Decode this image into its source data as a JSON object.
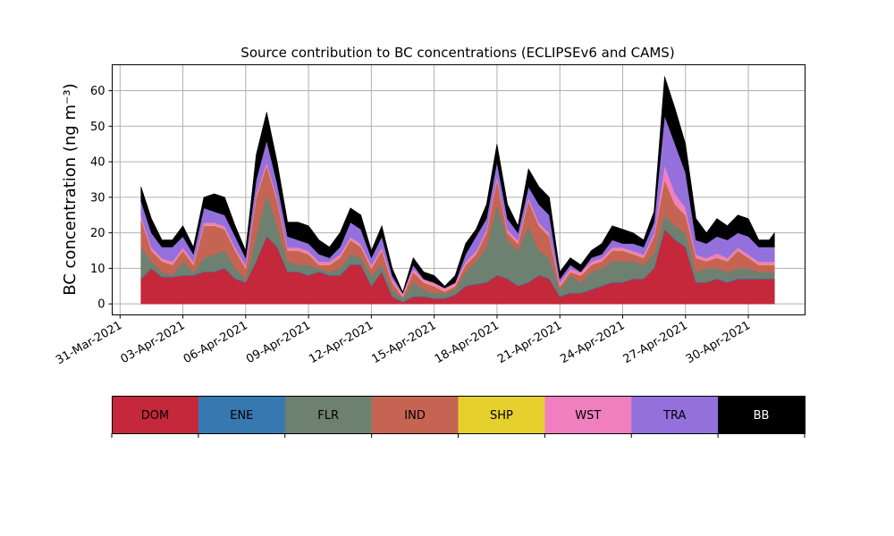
{
  "chart_data": {
    "type": "area",
    "stacked": true,
    "title": "Source contribution to BC concentrations (ECLIPSEv6 and CAMS)",
    "xlabel": "",
    "ylabel": "BC concentration (ng m⁻³)",
    "ylim": [
      -3.1,
      67.3
    ],
    "xlim": [
      "2021-03-30T15:00",
      "2021-05-02T17:00"
    ],
    "grid": true,
    "yticks": [
      "0",
      "10",
      "20",
      "30",
      "40",
      "50",
      "60"
    ],
    "xticks": [
      "31-Mar-2021",
      "03-Apr-2021",
      "06-Apr-2021",
      "09-Apr-2021",
      "12-Apr-2021",
      "15-Apr-2021",
      "18-Apr-2021",
      "21-Apr-2021",
      "24-Apr-2021",
      "27-Apr-2021",
      "30-Apr-2021"
    ],
    "legend_placement": "bottom colorbar",
    "x": [
      "2021-04-01T00",
      "2021-04-01T12",
      "2021-04-02T00",
      "2021-04-02T12",
      "2021-04-03T00",
      "2021-04-03T12",
      "2021-04-04T00",
      "2021-04-04T12",
      "2021-04-05T00",
      "2021-04-05T12",
      "2021-04-06T00",
      "2021-04-06T12",
      "2021-04-07T00",
      "2021-04-07T12",
      "2021-04-08T00",
      "2021-04-08T12",
      "2021-04-09T00",
      "2021-04-09T12",
      "2021-04-10T00",
      "2021-04-10T12",
      "2021-04-11T00",
      "2021-04-11T12",
      "2021-04-12T00",
      "2021-04-12T12",
      "2021-04-13T00",
      "2021-04-13T12",
      "2021-04-14T00",
      "2021-04-14T12",
      "2021-04-15T00",
      "2021-04-15T12",
      "2021-04-16T00",
      "2021-04-16T12",
      "2021-04-17T00",
      "2021-04-17T12",
      "2021-04-18T00",
      "2021-04-18T12",
      "2021-04-19T00",
      "2021-04-19T12",
      "2021-04-20T00",
      "2021-04-20T12",
      "2021-04-21T00",
      "2021-04-21T12",
      "2021-04-22T00",
      "2021-04-22T12",
      "2021-04-23T00",
      "2021-04-23T12",
      "2021-04-24T00",
      "2021-04-24T12",
      "2021-04-25T00",
      "2021-04-25T12",
      "2021-04-26T00",
      "2021-04-26T12",
      "2021-04-27T00",
      "2021-04-27T12",
      "2021-04-28T00",
      "2021-04-28T12",
      "2021-04-29T00",
      "2021-04-29T12",
      "2021-04-30T00",
      "2021-04-30T12",
      "2021-05-01T00",
      "2021-05-01T06"
    ],
    "series": [
      {
        "name": "DOM",
        "color": "#c4283a",
        "values": [
          7,
          10,
          7.5,
          7.5,
          8,
          8,
          9,
          9,
          10,
          7,
          6,
          12,
          19,
          16,
          9,
          9,
          8,
          9,
          8,
          8,
          11,
          11,
          5,
          9,
          2,
          0.5,
          2,
          2,
          1.5,
          1.5,
          2.5,
          5,
          5.5,
          6,
          8,
          7,
          5,
          6,
          8,
          7,
          2,
          3,
          3,
          4,
          5,
          6,
          6,
          7,
          7,
          10,
          21,
          18,
          16,
          6,
          6,
          7,
          6,
          7,
          7,
          7,
          7,
          7
        ]
      },
      {
        "name": "ENE",
        "color": "#3778b0",
        "values": [
          0.2,
          0.2,
          0.2,
          0.2,
          0.2,
          0.2,
          0.2,
          0.2,
          0.2,
          0.2,
          0.2,
          0.2,
          0.2,
          0.2,
          0.2,
          0.2,
          0.2,
          0.2,
          0.2,
          0.2,
          0.2,
          0.2,
          0.2,
          0.2,
          0.2,
          0.2,
          0.2,
          0.2,
          0.2,
          0.2,
          0.2,
          0.2,
          0.2,
          0.2,
          0.2,
          0.2,
          0.2,
          0.2,
          0.2,
          0.2,
          0.2,
          0.2,
          0.2,
          0.2,
          0.2,
          0.2,
          0.2,
          0.2,
          0.2,
          0.2,
          0.2,
          0.2,
          0.2,
          0.2,
          0.2,
          0.2,
          0.2,
          0.2,
          0.2,
          0.2,
          0.2,
          0.2
        ]
      },
      {
        "name": "FLR",
        "color": "#6e8070",
        "values": [
          8.8,
          1.8,
          1.3,
          0.3,
          3.8,
          0.8,
          3.8,
          4.8,
          4.8,
          2.8,
          0.8,
          6.8,
          11.8,
          5.8,
          2.8,
          1.8,
          2.8,
          0.8,
          0.8,
          1.8,
          2.8,
          1.8,
          2.8,
          1.8,
          1.8,
          0.8,
          3.8,
          1.8,
          1.3,
          1.3,
          1.3,
          3.8,
          6.3,
          9.8,
          19.8,
          10.8,
          9.8,
          15.8,
          6.8,
          5.8,
          1.8,
          4.8,
          2.8,
          4.8,
          4.8,
          5.8,
          5.8,
          4.8,
          3.8,
          3.8,
          3.8,
          3.8,
          3.8,
          2.8,
          3.8,
          2.8,
          2.8,
          2.8,
          2.8,
          1.8,
          1.8,
          1.8
        ]
      },
      {
        "name": "IND",
        "color": "#c66454",
        "values": [
          8,
          3,
          3,
          3,
          3,
          2,
          9,
          8,
          6,
          5,
          3,
          11,
          8,
          7,
          3,
          4,
          3,
          1,
          2,
          3,
          4,
          3,
          2,
          4,
          2,
          0.5,
          3,
          2,
          2,
          0.5,
          1,
          2,
          2,
          4,
          7,
          2,
          2,
          7,
          7,
          6,
          1,
          1,
          2,
          2,
          2,
          3,
          3,
          2,
          2,
          5,
          10,
          6,
          5,
          4,
          2,
          3,
          3,
          5,
          3,
          2,
          2,
          2
        ]
      },
      {
        "name": "SHP",
        "color": "#e6d02e",
        "values": [
          0.1,
          0.1,
          0.1,
          0.1,
          0.1,
          0.1,
          0.1,
          0.1,
          0.1,
          0.1,
          0.1,
          0.1,
          0.1,
          0.1,
          0.1,
          0.1,
          0.1,
          0.1,
          0.1,
          0.1,
          0.1,
          0.1,
          0.1,
          0.1,
          0.1,
          0.1,
          0.1,
          0.1,
          0.1,
          0.1,
          0.1,
          0.1,
          0.1,
          0.1,
          0.1,
          0.1,
          0.1,
          0.1,
          0.1,
          0.1,
          0.1,
          0.1,
          0.1,
          0.1,
          0.1,
          0.1,
          0.1,
          0.1,
          0.1,
          0.1,
          0.1,
          0.1,
          0.1,
          0.1,
          0.1,
          0.1,
          0.1,
          0.1,
          0.1,
          0.1,
          0.1,
          0.1
        ]
      },
      {
        "name": "WST",
        "color": "#f07fbf",
        "values": [
          0.8,
          0.8,
          0.8,
          0.8,
          0.8,
          0.8,
          0.8,
          0.8,
          0.8,
          0.8,
          0.8,
          0.8,
          0.8,
          0.8,
          0.8,
          0.8,
          0.8,
          0.8,
          0.8,
          0.8,
          0.8,
          0.8,
          0.8,
          0.8,
          0.8,
          0.8,
          0.8,
          0.8,
          0.8,
          0.8,
          0.8,
          0.8,
          0.8,
          0.8,
          0.8,
          0.8,
          0.8,
          0.8,
          0.8,
          0.8,
          0.8,
          0.8,
          0.8,
          0.8,
          0.8,
          0.8,
          0.8,
          0.8,
          0.8,
          0.8,
          4,
          3,
          2,
          0.8,
          0.8,
          1.2,
          0.8,
          0.8,
          0.8,
          0.8,
          0.8,
          0.8
        ]
      },
      {
        "name": "TRA",
        "color": "#9370db",
        "values": [
          4.1,
          4.1,
          3.1,
          4.1,
          3.1,
          2.1,
          4.1,
          3.1,
          3.1,
          3.1,
          2.1,
          4.1,
          6.1,
          4.1,
          3.1,
          2.1,
          2.1,
          2.1,
          1.1,
          2.1,
          4.1,
          4.1,
          2.1,
          3.1,
          1.1,
          0.1,
          1.1,
          0.1,
          0.1,
          0.1,
          0.1,
          2.1,
          4.1,
          3.1,
          4.1,
          3.1,
          2.1,
          3.1,
          5.1,
          5.1,
          1.1,
          1.1,
          0.1,
          1.1,
          1.1,
          2.1,
          1.1,
          2.1,
          2.1,
          3.1,
          13.9,
          13.9,
          9.9,
          4.1,
          4.1,
          4.7,
          5.1,
          4.1,
          5.1,
          4.1,
          4.1,
          4.1
        ]
      },
      {
        "name": "BB",
        "color": "#000000",
        "values": [
          4,
          4,
          2,
          2,
          3,
          2,
          3,
          5,
          5,
          3,
          2,
          7,
          8,
          6,
          4,
          5,
          5,
          4,
          3,
          4,
          4,
          4,
          2,
          3,
          2,
          0.3,
          2,
          2,
          2,
          0.5,
          2,
          3,
          2,
          4,
          5,
          4,
          2,
          5,
          5,
          5,
          2,
          2,
          2,
          2,
          3,
          4,
          4,
          3,
          2,
          3,
          11,
          10,
          8,
          6,
          3,
          5,
          4,
          5,
          5,
          2,
          2,
          4
        ]
      }
    ]
  }
}
